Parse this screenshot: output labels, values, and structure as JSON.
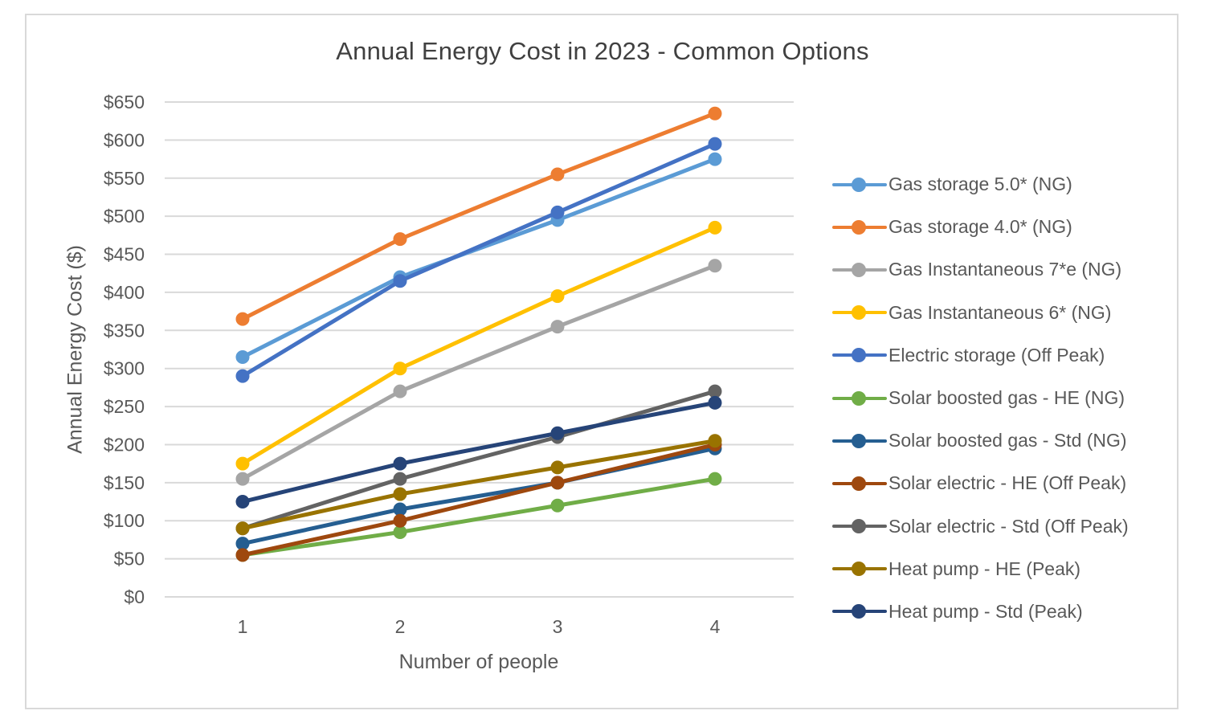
{
  "chart_data": {
    "type": "line",
    "title": "Annual Energy Cost in 2023 - Common Options",
    "xlabel": "Number of people",
    "ylabel": "Annual Energy Cost ($)",
    "x": [
      1,
      2,
      3,
      4
    ],
    "x_tick_labels": [
      "1",
      "2",
      "3",
      "4"
    ],
    "ylim": [
      0,
      650
    ],
    "y_ticks": [
      0,
      50,
      100,
      150,
      200,
      250,
      300,
      350,
      400,
      450,
      500,
      550,
      600,
      650
    ],
    "y_tick_labels": [
      "$0",
      "$50",
      "$100",
      "$150",
      "$200",
      "$250",
      "$300",
      "$350",
      "$400",
      "$450",
      "$500",
      "$550",
      "$600",
      "$650"
    ],
    "grid": "horizontal",
    "legend_position": "right",
    "series": [
      {
        "name": "Gas storage 5.0* (NG)",
        "color": "#5b9bd5",
        "values": [
          315,
          420,
          495,
          575
        ]
      },
      {
        "name": "Gas storage 4.0* (NG)",
        "color": "#ed7d31",
        "values": [
          365,
          470,
          555,
          635
        ]
      },
      {
        "name": "Gas Instantaneous 7*e (NG)",
        "color": "#a5a5a5",
        "values": [
          155,
          270,
          355,
          435
        ]
      },
      {
        "name": "Gas Instantaneous 6* (NG)",
        "color": "#ffc000",
        "values": [
          175,
          300,
          395,
          485
        ]
      },
      {
        "name": "Electric storage (Off Peak)",
        "color": "#4472c4",
        "values": [
          290,
          415,
          505,
          595
        ]
      },
      {
        "name": "Solar boosted gas - HE (NG)",
        "color": "#70ad47",
        "values": [
          55,
          85,
          120,
          155
        ]
      },
      {
        "name": "Solar boosted gas - Std (NG)",
        "color": "#255e91",
        "values": [
          70,
          115,
          150,
          195
        ]
      },
      {
        "name": "Solar electric - HE (Off Peak)",
        "color": "#9e480e",
        "values": [
          55,
          100,
          150,
          200
        ]
      },
      {
        "name": "Solar electric - Std (Off Peak)",
        "color": "#636363",
        "values": [
          90,
          155,
          210,
          270
        ]
      },
      {
        "name": "Heat pump - HE (Peak)",
        "color": "#997300",
        "values": [
          90,
          135,
          170,
          205
        ]
      },
      {
        "name": "Heat pump - Std (Peak)",
        "color": "#264478",
        "values": [
          125,
          175,
          215,
          255
        ]
      }
    ]
  }
}
